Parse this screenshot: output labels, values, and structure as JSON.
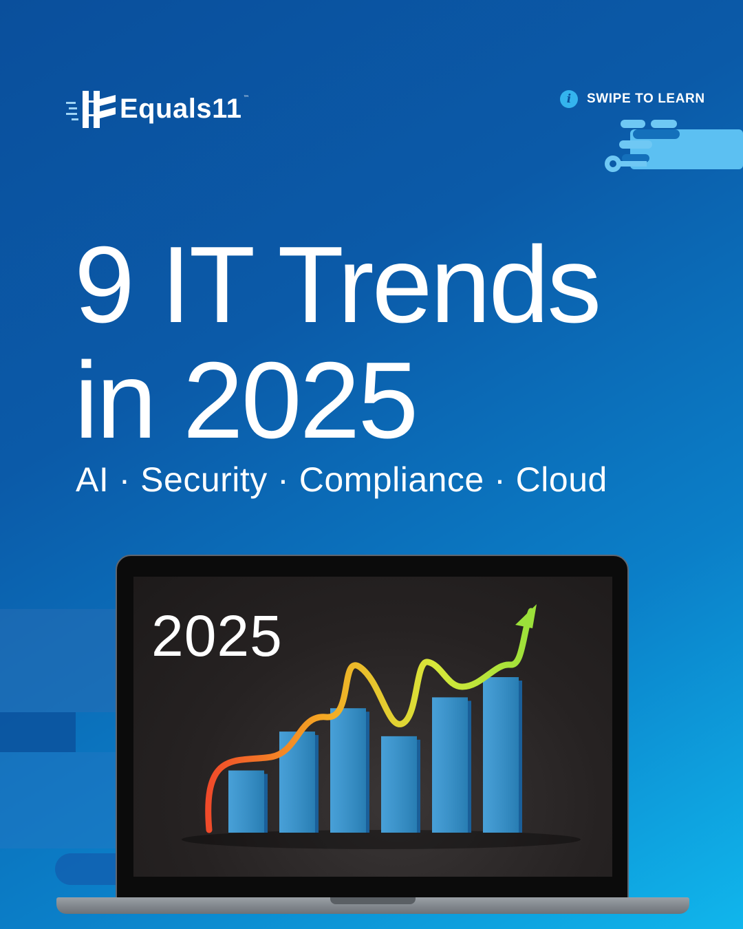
{
  "brand": {
    "name": "Equals11",
    "trademark": "™",
    "logo_icon": "equals11-logo-icon"
  },
  "cta": {
    "label": "SWIPE TO LEARN",
    "icon": "info-icon"
  },
  "headline": {
    "line1": "9 IT Trends",
    "line2": "in 2025"
  },
  "subtitle": "AI · Security · Compliance · Cloud",
  "illustration": {
    "screen_year": "2025",
    "bar_levels": [
      0.4,
      0.65,
      0.8,
      0.62,
      0.87,
      1.0
    ],
    "bar_color": "#2f93d2",
    "trend_gradient": [
      "#f04a2a",
      "#f5a623",
      "#d7e83a",
      "#9be03a"
    ]
  },
  "colors": {
    "background_top": "#0a4f9c",
    "background_bottom": "#10b6ec",
    "accent": "#34b4ee",
    "text": "#ffffff"
  }
}
